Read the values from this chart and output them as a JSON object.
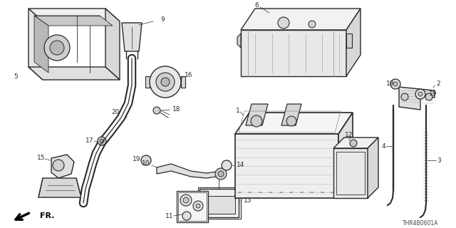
{
  "bg_color": "#ffffff",
  "line_color": "#2a2a2a",
  "part_code": "THR4B0601A",
  "label_fs": 6.5,
  "fr_text": "FR."
}
